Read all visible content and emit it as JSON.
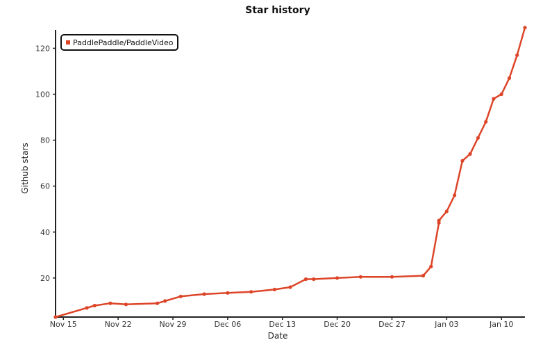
{
  "chart_data": {
    "type": "line",
    "title": "Star history",
    "xlabel": "Date",
    "ylabel": "Github stars",
    "x_ticks": [
      "Nov 15",
      "Nov 22",
      "Nov 29",
      "Dec 06",
      "Dec 13",
      "Dec 20",
      "Dec 27",
      "Jan 03",
      "Jan 10"
    ],
    "y_ticks": [
      20,
      40,
      60,
      80,
      100,
      120
    ],
    "xlim": [
      "2021-11-14",
      "2022-01-13"
    ],
    "ylim": [
      3,
      128
    ],
    "grid": false,
    "legend_position": "top-left",
    "series": [
      {
        "name": "PaddlePaddle/PaddleVideo",
        "color": "#dd4528",
        "x": [
          "2021-11-14",
          "2021-11-18",
          "2021-11-19",
          "2021-11-21",
          "2021-11-23",
          "2021-11-27",
          "2021-11-28",
          "2021-11-30",
          "2021-12-03",
          "2021-12-06",
          "2021-12-09",
          "2021-12-12",
          "2021-12-14",
          "2021-12-16",
          "2021-12-17",
          "2021-12-20",
          "2021-12-23",
          "2021-12-27",
          "2021-12-31",
          "2022-01-01",
          "2022-01-02",
          "2022-01-02",
          "2022-01-03",
          "2022-01-04",
          "2022-01-05",
          "2022-01-06",
          "2022-01-07",
          "2022-01-08",
          "2022-01-09",
          "2022-01-10",
          "2022-01-11",
          "2022-01-12",
          "2022-01-13"
        ],
        "y": [
          3,
          7,
          8,
          9,
          8.5,
          9,
          10,
          12,
          13,
          13.5,
          14,
          15,
          16,
          19.5,
          19.5,
          20,
          20.5,
          20.5,
          21,
          25,
          44,
          45,
          49,
          56,
          71,
          74,
          81,
          88,
          98,
          100,
          107,
          117,
          129
        ]
      }
    ]
  }
}
